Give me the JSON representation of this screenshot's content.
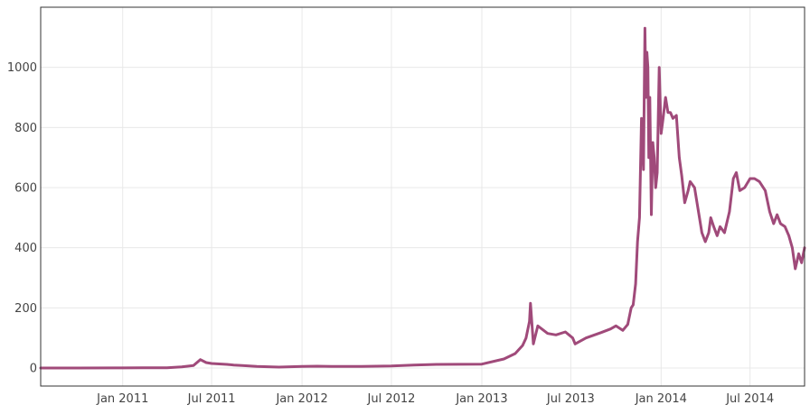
{
  "chart_data": {
    "type": "line",
    "title": "",
    "xlabel": "",
    "ylabel": "",
    "grid": true,
    "line_color": "#a04a7a",
    "xlim": [
      "2010-07-18",
      "2014-10-20"
    ],
    "ylim": [
      -60,
      1200
    ],
    "y_ticks": [
      0,
      200,
      400,
      600,
      800,
      1000
    ],
    "y_tick_labels": [
      "0",
      "200",
      "400",
      "600",
      "800",
      "1000"
    ],
    "x_ticks": [
      "2011-01-01",
      "2011-07-01",
      "2012-01-01",
      "2012-07-01",
      "2013-01-01",
      "2013-07-01",
      "2014-01-01",
      "2014-07-01"
    ],
    "x_tick_labels": [
      "Jan 2011",
      "Jul 2011",
      "Jan 2012",
      "Jul 2012",
      "Jan 2013",
      "Jul 2013",
      "Jan 2014",
      "Jul 2014"
    ],
    "series": [
      {
        "x": [
          "2010-07-18",
          "2010-10-01",
          "2011-01-01",
          "2011-02-10",
          "2011-04-01",
          "2011-05-01",
          "2011-05-25",
          "2011-06-08",
          "2011-06-20",
          "2011-07-01",
          "2011-08-01",
          "2011-08-15",
          "2011-09-01",
          "2011-10-01",
          "2011-11-15",
          "2012-01-01",
          "2012-02-01",
          "2012-03-01",
          "2012-05-01",
          "2012-07-01",
          "2012-08-15",
          "2012-10-01",
          "2013-01-01",
          "2013-02-15",
          "2013-03-10",
          "2013-03-25",
          "2013-04-01",
          "2013-04-08",
          "2013-04-10",
          "2013-04-16",
          "2013-04-25",
          "2013-05-15",
          "2013-06-01",
          "2013-06-20",
          "2013-07-05",
          "2013-07-10",
          "2013-08-01",
          "2013-09-01",
          "2013-09-20",
          "2013-10-01",
          "2013-10-15",
          "2013-10-25",
          "2013-11-01",
          "2013-11-05",
          "2013-11-10",
          "2013-11-14",
          "2013-11-18",
          "2013-11-22",
          "2013-11-26",
          "2013-11-29",
          "2013-12-01",
          "2013-12-03",
          "2013-12-05",
          "2013-12-07",
          "2013-12-09",
          "2013-12-12",
          "2013-12-15",
          "2013-12-18",
          "2013-12-21",
          "2013-12-24",
          "2013-12-28",
          "2014-01-01",
          "2014-01-05",
          "2014-01-10",
          "2014-01-15",
          "2014-01-20",
          "2014-01-25",
          "2014-02-01",
          "2014-02-07",
          "2014-02-12",
          "2014-02-18",
          "2014-02-25",
          "2014-03-01",
          "2014-03-10",
          "2014-03-20",
          "2014-03-25",
          "2014-04-01",
          "2014-04-08",
          "2014-04-12",
          "2014-04-18",
          "2014-04-25",
          "2014-05-01",
          "2014-05-10",
          "2014-05-20",
          "2014-05-28",
          "2014-06-03",
          "2014-06-10",
          "2014-06-20",
          "2014-07-01",
          "2014-07-10",
          "2014-07-20",
          "2014-08-01",
          "2014-08-10",
          "2014-08-18",
          "2014-08-25",
          "2014-09-01",
          "2014-09-10",
          "2014-09-18",
          "2014-09-25",
          "2014-10-01",
          "2014-10-08",
          "2014-10-14",
          "2014-10-20"
        ],
        "values": [
          0,
          0,
          0.3,
          1,
          1,
          4,
          8,
          28,
          18,
          15,
          12,
          10,
          8,
          5,
          3,
          5,
          6,
          5,
          5,
          7,
          10,
          12,
          13,
          30,
          48,
          75,
          100,
          155,
          215,
          80,
          140,
          115,
          110,
          120,
          100,
          80,
          100,
          118,
          130,
          140,
          125,
          145,
          200,
          210,
          280,
          420,
          500,
          830,
          660,
          1130,
          900,
          1050,
          1000,
          700,
          900,
          510,
          750,
          700,
          600,
          650,
          1000,
          780,
          830,
          900,
          850,
          850,
          830,
          840,
          700,
          640,
          550,
          590,
          620,
          600,
          500,
          450,
          420,
          450,
          500,
          470,
          440,
          470,
          450,
          520,
          630,
          650,
          590,
          600,
          630,
          630,
          620,
          590,
          520,
          480,
          510,
          480,
          470,
          440,
          400,
          330,
          380,
          350,
          400
        ]
      }
    ]
  }
}
